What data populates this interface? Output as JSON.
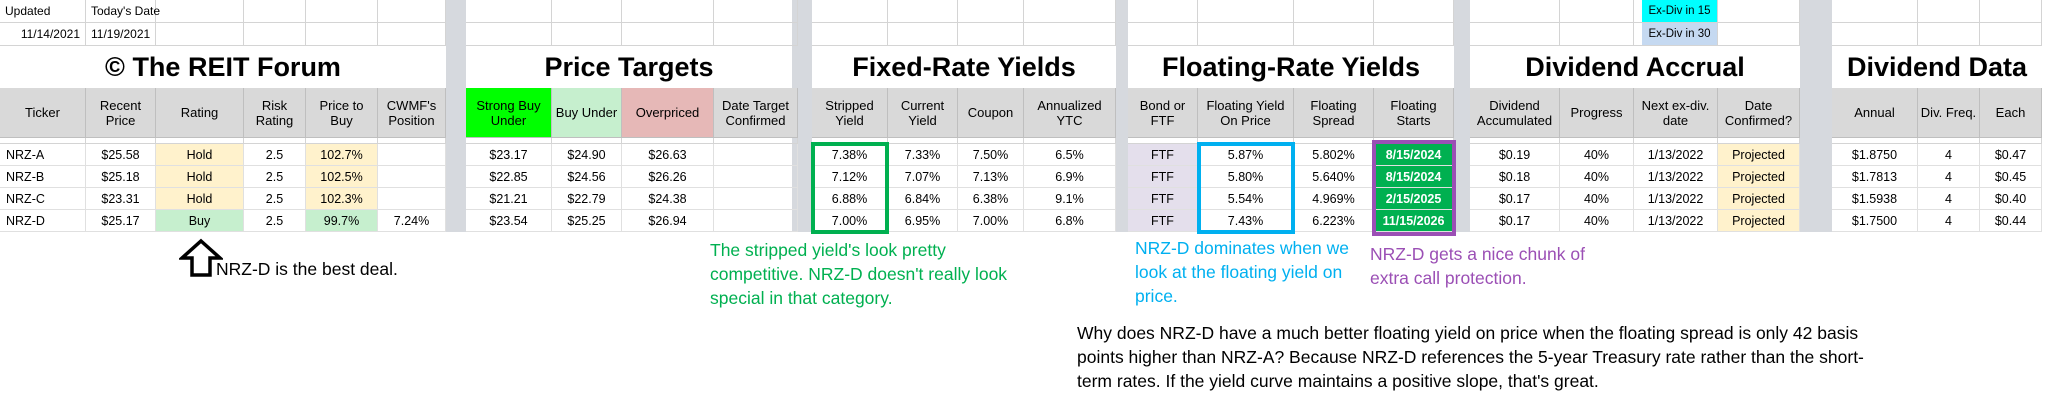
{
  "top": {
    "updated_label": "Updated",
    "updated_value": "11/14/2021",
    "today_label": "Today's Date",
    "today_value": "11/19/2021",
    "exdiv15": "Ex-Div in 15",
    "exdiv30": "Ex-Div in 30"
  },
  "sections": {
    "forum": "© The REIT Forum",
    "price_targets": "Price Targets",
    "fixed": "Fixed-Rate Yields",
    "floating": "Floating-Rate Yields",
    "accrual": "Dividend Accrual",
    "dividend": "Dividend Data"
  },
  "columns": [
    "Ticker",
    "Recent Price",
    "Rating",
    "Risk Rating",
    "Price to Buy",
    "CWMF's Position",
    "Strong Buy Under",
    "Buy Under",
    "Overpriced",
    "Date Target Confirmed",
    "Stripped Yield",
    "Current Yield",
    "Coupon",
    "Annualized YTC",
    "Bond or FTF",
    "Floating Yield On Price",
    "Floating Spread",
    "Floating Starts",
    "Dividend Accumulated",
    "Progress",
    "Next ex-div. date",
    "Date Confirmed?",
    "Annual",
    "Div. Freq.",
    "Each"
  ],
  "rows": [
    [
      "NRZ-A",
      "$25.58",
      "Hold",
      "2.5",
      "102.7%",
      "",
      "$23.17",
      "$24.90",
      "$26.63",
      "",
      "7.38%",
      "7.33%",
      "7.50%",
      "6.5%",
      "FTF",
      "5.87%",
      "5.802%",
      "8/15/2024",
      "$0.19",
      "40%",
      "1/13/2022",
      "Projected",
      "$1.8750",
      "4",
      "$0.47"
    ],
    [
      "NRZ-B",
      "$25.18",
      "Hold",
      "2.5",
      "102.5%",
      "",
      "$22.85",
      "$24.56",
      "$26.26",
      "",
      "7.12%",
      "7.07%",
      "7.13%",
      "6.9%",
      "FTF",
      "5.80%",
      "5.640%",
      "8/15/2024",
      "$0.18",
      "40%",
      "1/13/2022",
      "Projected",
      "$1.7813",
      "4",
      "$0.45"
    ],
    [
      "NRZ-C",
      "$23.31",
      "Hold",
      "2.5",
      "102.3%",
      "",
      "$21.21",
      "$22.79",
      "$24.38",
      "",
      "6.88%",
      "6.84%",
      "6.38%",
      "9.1%",
      "FTF",
      "5.54%",
      "4.969%",
      "2/15/2025",
      "$0.17",
      "40%",
      "1/13/2022",
      "Projected",
      "$1.5938",
      "4",
      "$0.40"
    ],
    [
      "NRZ-D",
      "$25.17",
      "Buy",
      "2.5",
      "99.7%",
      "7.24%",
      "$23.54",
      "$25.25",
      "$26.94",
      "",
      "7.00%",
      "6.95%",
      "7.00%",
      "6.8%",
      "FTF",
      "7.43%",
      "6.223%",
      "11/15/2026",
      "$0.17",
      "40%",
      "1/13/2022",
      "Projected",
      "$1.7500",
      "4",
      "$0.44"
    ]
  ],
  "annotations": {
    "best_deal": "NRZ-D is the best deal.",
    "stripped": "The stripped yield's look pretty competitive. NRZ-D doesn't really look special in that category.",
    "floating": "NRZ-D dominates when we look at the floating yield on price.",
    "call": "NRZ-D gets a nice chunk of extra call protection.",
    "why": "Why does NRZ-D have a much better floating yield on price when the floating spread is only 42 basis points higher than NRZ-A? Because NRZ-D references the 5-year Treasury rate rather than the short-term rates. If the yield curve maintains a positive slope, that's great."
  },
  "colors": {
    "header_gray": "#d9d9d9",
    "strong_buy": "#00ff00",
    "buy_under": "#c6efce",
    "overpriced": "#e6b8b7",
    "hold": "#fff2cc",
    "buy": "#c6efce",
    "ftf": "#e4dfec",
    "floating_starts": "#00b050",
    "projected": "#fff2cc",
    "exdiv15": "#00ffff",
    "exdiv30": "#c5d9f1",
    "green_note": "#00b050",
    "blue_note": "#00b0f0",
    "purple_note": "#9b4fb5",
    "separator": "#d6d9de"
  }
}
